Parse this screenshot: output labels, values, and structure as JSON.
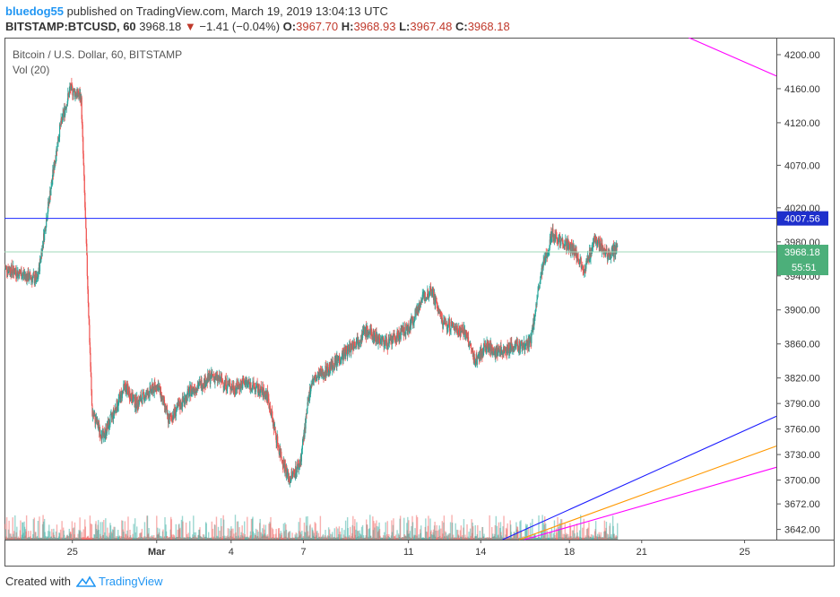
{
  "header": {
    "author": "bluedog55",
    "published_text": "published on TradingView.com, March 19, 2019 13:04:13 UTC",
    "symbol": "BITSTAMP:BTCUSD, 60",
    "last": "3968.18",
    "change_arrow": "▼",
    "change": "−1.41 (−0.04%)",
    "o_label": "O:",
    "o_value": "3967.70",
    "h_label": "H:",
    "h_value": "3968.93",
    "l_label": "L:",
    "l_value": "3967.48",
    "c_label": "C:",
    "c_value": "3968.18"
  },
  "legend": {
    "series_title": "Bitcoin / U.S. Dollar, 60, BITSTAMP",
    "volume_label": "Vol (20)"
  },
  "footer": {
    "created_with": "Created with",
    "brand": "TradingView"
  },
  "colors": {
    "up": "#26a69a",
    "down": "#ef5350",
    "horizontal_line": "#1a27ff",
    "price_tag_bg": "#1e2a8c",
    "last_tag_bg": "#4caf7a",
    "trend_blue": "#1a1aff",
    "trend_orange": "#ff9800",
    "trend_magenta": "#ff00ff"
  },
  "chart_data": {
    "type": "candlestick",
    "title": "Bitcoin / U.S. Dollar, 60, BITSTAMP",
    "x_tick_labels": [
      "25",
      "Mar",
      "4",
      "7",
      "11",
      "14",
      "18",
      "21",
      "25"
    ],
    "y_tick_labels": [
      4200,
      4160,
      4120,
      4070,
      4020,
      3980,
      3940,
      3900,
      3860,
      3820,
      3790,
      3760,
      3730,
      3700,
      3672,
      3642
    ],
    "ylim": [
      3630,
      4220
    ],
    "price_path_anchors": [
      [
        0,
        3950
      ],
      [
        3,
        3935
      ],
      [
        5,
        4110
      ],
      [
        6,
        4160
      ],
      [
        7,
        4150
      ],
      [
        8,
        3780
      ],
      [
        9,
        3750
      ],
      [
        11,
        3810
      ],
      [
        12,
        3790
      ],
      [
        14,
        3812
      ],
      [
        15,
        3770
      ],
      [
        17,
        3805
      ],
      [
        19,
        3822
      ],
      [
        21,
        3808
      ],
      [
        22,
        3815
      ],
      [
        24,
        3800
      ],
      [
        25,
        3740
      ],
      [
        26,
        3700
      ],
      [
        27,
        3720
      ],
      [
        28,
        3815
      ],
      [
        30,
        3835
      ],
      [
        33,
        3875
      ],
      [
        35,
        3860
      ],
      [
        37,
        3880
      ],
      [
        38,
        3910
      ],
      [
        39,
        3925
      ],
      [
        40,
        3885
      ],
      [
        42,
        3875
      ],
      [
        43,
        3840
      ],
      [
        44,
        3858
      ],
      [
        45,
        3850
      ],
      [
        46,
        3855
      ],
      [
        48,
        3860
      ],
      [
        49,
        3940
      ],
      [
        50,
        3990
      ],
      [
        52,
        3970
      ],
      [
        53,
        3948
      ],
      [
        54,
        3985
      ],
      [
        55,
        3965
      ],
      [
        56,
        3970
      ]
    ],
    "horizontal_line": {
      "value": 4007.56,
      "label": "4007.56"
    },
    "last_price": {
      "value": 3968.18,
      "label": "3968.18",
      "countdown": "55:51"
    },
    "trendlines": [
      {
        "name": "blue",
        "from": [
          45.5,
          3630
        ],
        "to": [
          70.5,
          3775
        ]
      },
      {
        "name": "orange",
        "from": [
          47.0,
          3630
        ],
        "to": [
          70.5,
          3740
        ]
      },
      {
        "name": "magenta",
        "from": [
          47.5,
          3630
        ],
        "to": [
          70.5,
          3715
        ]
      },
      {
        "name": "magenta-top",
        "from": [
          62.5,
          4220
        ],
        "to": [
          70.5,
          4175
        ]
      }
    ],
    "x_range": [
      0,
      70.5
    ],
    "x_tick_positions": [
      6.2,
      13.9,
      20.7,
      27.3,
      36.9,
      43.5,
      51.6,
      58.2,
      67.6
    ],
    "volume": {
      "label": "Vol (20)",
      "max_shown": 85
    }
  }
}
